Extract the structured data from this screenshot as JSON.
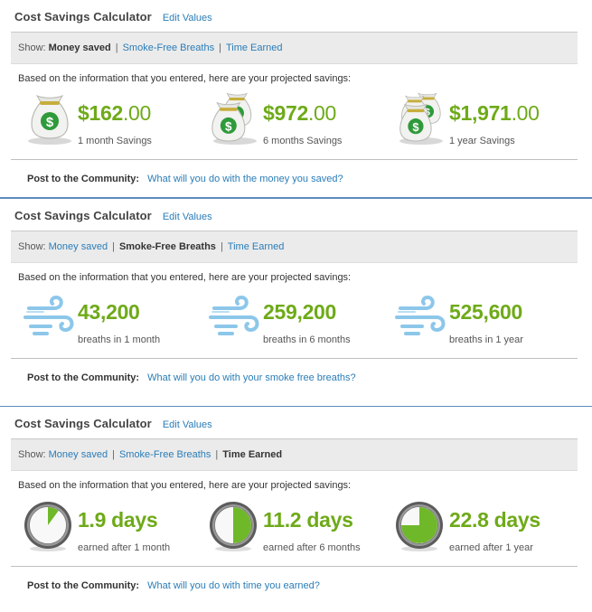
{
  "panels": [
    {
      "title": "Cost Savings Calculator",
      "edit_label": "Edit Values",
      "show_label": "Show:",
      "options": [
        "Money saved",
        "Smoke-Free Breaths",
        "Time Earned"
      ],
      "active": 0,
      "intro": "Based on the information that you entered, here are your projected savings:",
      "icon": "money-bag-icon",
      "stats": [
        {
          "main": "$162",
          "cents": ".00",
          "caption": "1 month Savings"
        },
        {
          "main": "$972",
          "cents": ".00",
          "caption": "6 months Savings"
        },
        {
          "main": "$1,971",
          "cents": ".00",
          "caption": "1 year Savings"
        }
      ],
      "post_label": "Post to the Community:",
      "post_link": "What will you do with the money you saved?"
    },
    {
      "title": "Cost Savings Calculator",
      "edit_label": "Edit Values",
      "show_label": "Show:",
      "options": [
        "Money saved",
        "Smoke-Free Breaths",
        "Time Earned"
      ],
      "active": 1,
      "intro": "Based on the information that you entered, here are your projected savings:",
      "icon": "wind-breath-icon",
      "stats": [
        {
          "main": "43,200",
          "cents": "",
          "caption": "breaths in 1 month"
        },
        {
          "main": "259,200",
          "cents": "",
          "caption": "breaths in 6 months"
        },
        {
          "main": "525,600",
          "cents": "",
          "caption": "breaths in 1 year"
        }
      ],
      "post_label": "Post to the Community:",
      "post_link": "What will you do with your smoke free breaths?"
    },
    {
      "title": "Cost Savings Calculator",
      "edit_label": "Edit Values",
      "show_label": "Show:",
      "options": [
        "Money saved",
        "Smoke-Free Breaths",
        "Time Earned"
      ],
      "active": 2,
      "intro": "Based on the information that you entered, here are your projected savings:",
      "icon": "clock-icon",
      "stats": [
        {
          "main": "1.9 days",
          "cents": "",
          "caption": "earned after 1 month",
          "clock_fraction": 0.1
        },
        {
          "main": "11.2 days",
          "cents": "",
          "caption": "earned after 6 months",
          "clock_fraction": 0.5
        },
        {
          "main": "22.8 days",
          "cents": "",
          "caption": "earned after 1 year",
          "clock_fraction": 0.75
        }
      ],
      "post_label": "Post to the Community:",
      "post_link": "What will you do with time you earned?"
    }
  ],
  "colors": {
    "value_green": "#6eaa18",
    "link_blue": "#2a7db8",
    "separator_blue": "#5b8bbf",
    "bar_gray": "#ebebeb"
  }
}
